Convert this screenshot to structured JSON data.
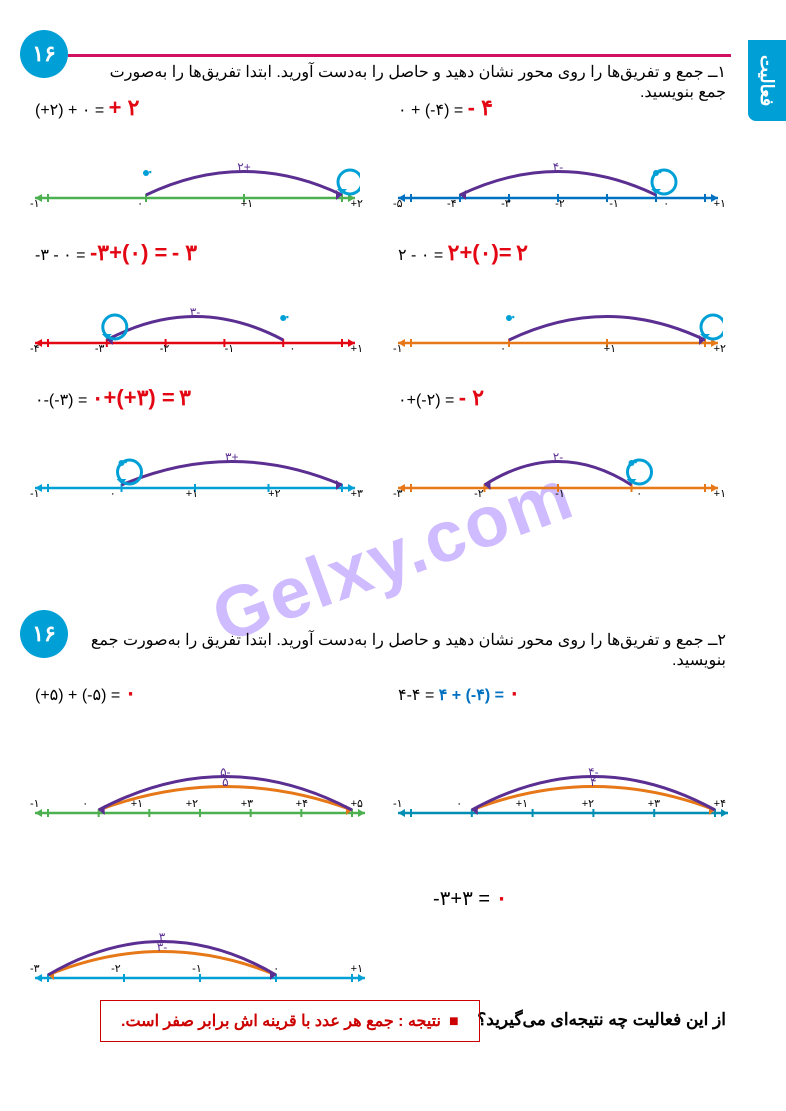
{
  "page_number": "۱۶",
  "sidebar_tab": "فعالیت",
  "q1": "۱ــ جمع و تفریق‌ها را روی محور نشان دهید و حاصل را به‌دست آورید. ابتدا تفریق‌ها را به‌صورت جمع بنویسید.",
  "q2": "۲ــ جمع و تفریق‌ها را روی محور نشان دهید و حاصل را به‌دست آورید. ابتدا تفریق را به‌صورت جمع بنویسید.",
  "q3": "از این فعالیت چه نتیجه‌ای می‌گیرید؟",
  "result": "نتیجه : جمع هر عدد با قرینه اش برابر صفر است.",
  "watermark": "Gelxy.com",
  "colors": {
    "red": "#e30613",
    "purple": "#5b2e91",
    "orange": "#e67817",
    "cyan": "#00a0d6",
    "green": "#4caf50",
    "blue": "#0070c0",
    "darkcyan": "#008fb3"
  },
  "block1": [
    {
      "eq_left": "(+۲) + ۰ =",
      "ans": "+ ۲",
      "axis_color": "#4caf50",
      "ticks": [
        "-۱",
        "۰",
        "+۱",
        "+۲"
      ],
      "arc1": {
        "from": 0,
        "to": 2,
        "label": "+۲",
        "color": "#5b2e91"
      },
      "loop": {
        "at": 2,
        "color": "#00a0d6"
      },
      "dot_at": 0
    },
    {
      "eq_left": "۰ + (-۴) =",
      "ans": "- ۴",
      "axis_color": "#0070c0",
      "ticks": [
        "-۵",
        "-۴",
        "-۳",
        "-۲",
        "-۱",
        "۰",
        "+۱"
      ],
      "arc1": {
        "from": 0,
        "to": -4,
        "label": "-۴",
        "color": "#5b2e91"
      },
      "loop": {
        "at": 0,
        "color": "#00a0d6"
      },
      "dot_at": 0
    },
    {
      "eq_left": "-۳ - ۰ =",
      "mid": "-۳+(۰) =",
      "ans": "- ۳",
      "axis_color": "#e30613",
      "ticks": [
        "-۴",
        "-۳",
        "-۲",
        "-۱",
        "۰",
        "+۱"
      ],
      "arc1": {
        "from": 0,
        "to": -3,
        "label": "-۳",
        "color": "#5b2e91"
      },
      "loop": {
        "at": -3,
        "color": "#00a0d6"
      },
      "dot_at": 0
    },
    {
      "eq_left": "۲ - ۰ =",
      "mid": "۲+(۰)=",
      "ans": "۲",
      "axis_color": "#e67817",
      "ticks": [
        "-۱",
        "۰",
        "+۱",
        "+۲"
      ],
      "arc1": {
        "from": 0,
        "to": 2,
        "label": "",
        "color": "#5b2e91"
      },
      "loop": {
        "at": 2,
        "color": "#00a0d6"
      },
      "dot_at": 0
    },
    {
      "eq_left": "۰-(-۳) =",
      "mid": "۰+(+۳) =",
      "ans": "۳",
      "axis_color": "#00a0d6",
      "ticks": [
        "-۱",
        "۰",
        "+۱",
        "+۲",
        "+۳"
      ],
      "arc1": {
        "from": 0,
        "to": 3,
        "label": "+۳",
        "color": "#5b2e91"
      },
      "loop": {
        "at": 0,
        "color": "#00a0d6"
      },
      "dot_at": 0
    },
    {
      "eq_left": "۰+(-۲) =",
      "ans": "- ۲",
      "axis_color": "#e67817",
      "ticks": [
        "-۳",
        "-۲",
        "-۱",
        "۰",
        "+۱"
      ],
      "arc1": {
        "from": 0,
        "to": -2,
        "label": "-۲",
        "color": "#5b2e91"
      },
      "loop": {
        "at": 0,
        "color": "#00a0d6"
      },
      "dot_at": 0
    }
  ],
  "block2": [
    {
      "eq": "(+۵) + (-۵) =",
      "ans": "۰",
      "axis_color": "#4caf50",
      "ticks": [
        "-۱",
        "۰",
        "+۱",
        "+۲",
        "+۳",
        "+۴",
        "+۵"
      ],
      "arc1": {
        "from": 0,
        "to": 5,
        "label": "۵",
        "color": "#e67817"
      },
      "arc2": {
        "from": 5,
        "to": 0,
        "label": "-۵",
        "color": "#5b2e91"
      }
    },
    {
      "eq": "۴-۴ =",
      "mid": "۴ + (-۴) =",
      "ans": "۰",
      "axis_color": "#008fb3",
      "ticks": [
        "-۱",
        "۰",
        "+۱",
        "+۲",
        "+۳",
        "+۴"
      ],
      "arc1": {
        "from": 0,
        "to": 4,
        "label": "۴",
        "color": "#e67817"
      },
      "arc2": {
        "from": 4,
        "to": 0,
        "label": "-۴",
        "color": "#5b2e91"
      }
    },
    {
      "eq": "",
      "axis_color": "#00a0d6",
      "ticks": [
        "-۳",
        "-۲",
        "-۱",
        "۰",
        "+۱"
      ],
      "arc1": {
        "from": 0,
        "to": -3,
        "label": "-۳",
        "color": "#e67817"
      },
      "arc2": {
        "from": -3,
        "to": 0,
        "label": "۳",
        "color": "#5b2e91"
      }
    },
    {
      "eq": "-۳+۳ =",
      "ans": "۰",
      "plain": true
    }
  ]
}
